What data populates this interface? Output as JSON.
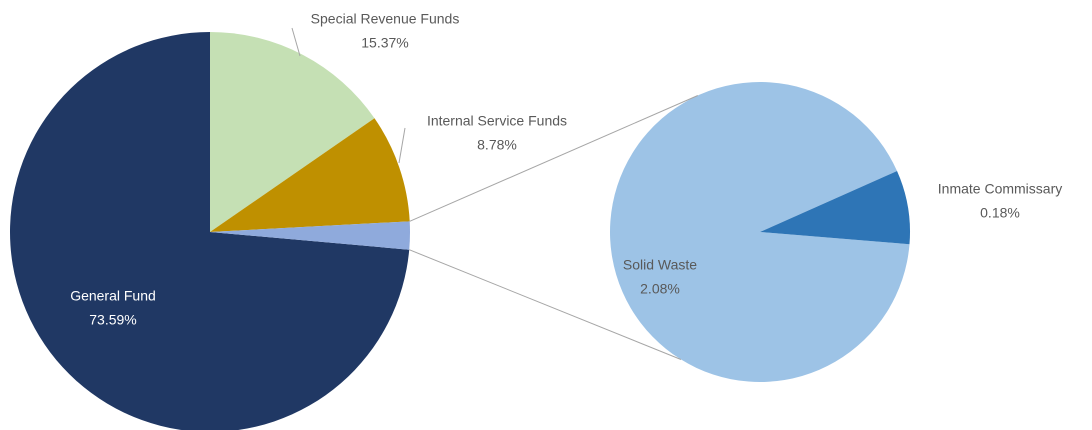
{
  "chart_data": {
    "type": "pie-of-pie",
    "primary": {
      "categories": [
        "General Fund",
        "Special Revenue Funds",
        "Internal Service Funds"
      ],
      "values": [
        73.59,
        15.37,
        8.78
      ],
      "value_labels": [
        "73.59%",
        "15.37%",
        "8.78%"
      ],
      "colors": [
        "#203864",
        "#c5e0b4",
        "#bf9000"
      ],
      "group_color": "#8faadc"
    },
    "secondary": {
      "categories": [
        "Solid Waste",
        "Inmate Commissary"
      ],
      "values": [
        2.08,
        0.18
      ],
      "value_labels": [
        "2.08%",
        "0.18%"
      ],
      "colors": [
        "#9dc3e6",
        "#2e75b6"
      ]
    }
  }
}
